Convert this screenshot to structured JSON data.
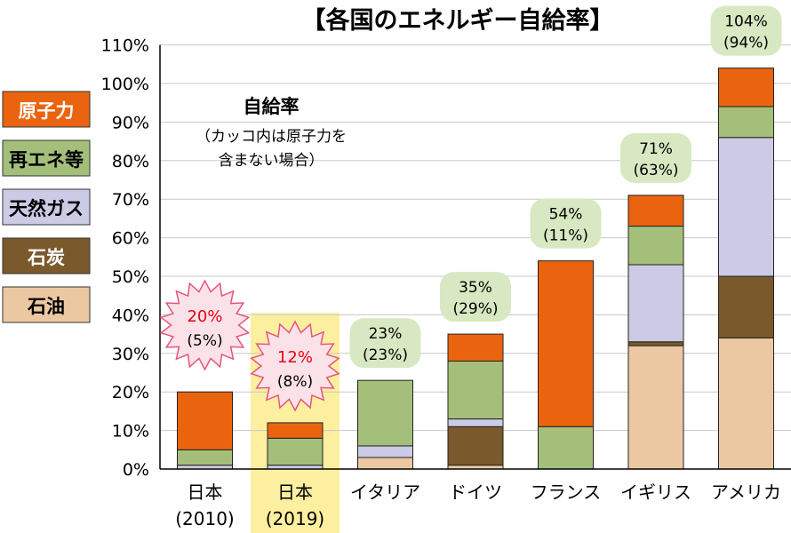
{
  "chart_data": {
    "type": "bar",
    "stacked": true,
    "title": "【各国のエネルギー自給率】",
    "ylim": [
      0,
      110
    ],
    "yticks": [
      "0%",
      "10%",
      "20%",
      "30%",
      "40%",
      "50%",
      "60%",
      "70%",
      "80%",
      "90%",
      "100%",
      "110%"
    ],
    "grid": true,
    "legend_position": "left",
    "note": {
      "line1": "自給率",
      "line2": "（カッコ内は原子力を",
      "line3": "含まない場合）"
    },
    "categories": [
      {
        "label": "日本",
        "sub": "(2010)",
        "highlight": false
      },
      {
        "label": "日本",
        "sub": "(2019)",
        "highlight": true
      },
      {
        "label": "イタリア",
        "sub": "",
        "highlight": false
      },
      {
        "label": "ドイツ",
        "sub": "",
        "highlight": false
      },
      {
        "label": "フランス",
        "sub": "",
        "highlight": false
      },
      {
        "label": "イギリス",
        "sub": "",
        "highlight": false
      },
      {
        "label": "アメリカ",
        "sub": "",
        "highlight": false
      }
    ],
    "series": [
      {
        "name": "石油",
        "color": "#ebc8a2",
        "values": [
          0,
          0,
          3,
          1,
          0,
          32,
          34
        ]
      },
      {
        "name": "石炭",
        "color": "#7a5a2c",
        "values": [
          0,
          0,
          0,
          10,
          0,
          1,
          16
        ]
      },
      {
        "name": "天然ガス",
        "color": "#cccbe6",
        "values": [
          1,
          1,
          3,
          2,
          0,
          20,
          36
        ]
      },
      {
        "name": "再エネ等",
        "color": "#a3bf7a",
        "values": [
          4,
          7,
          17,
          15,
          11,
          10,
          8
        ]
      },
      {
        "name": "原子力",
        "color": "#ea6410",
        "values": [
          15,
          4,
          0,
          7,
          43,
          8,
          10
        ]
      }
    ],
    "data_labels": [
      {
        "total": "20%",
        "excl": "(5%)",
        "style": "burst"
      },
      {
        "total": "12%",
        "excl": "(8%)",
        "style": "burst"
      },
      {
        "total": "23%",
        "excl": "(23%)",
        "style": "bubble"
      },
      {
        "total": "35%",
        "excl": "(29%)",
        "style": "bubble"
      },
      {
        "total": "54%",
        "excl": "(11%)",
        "style": "bubble"
      },
      {
        "total": "71%",
        "excl": "(63%)",
        "style": "bubble"
      },
      {
        "total": "104%",
        "excl": "(94%)",
        "style": "bubble"
      }
    ],
    "legend": [
      {
        "name": "原子力",
        "color": "#ea6410",
        "text_color": "#ffffff"
      },
      {
        "name": "再エネ等",
        "color": "#a3bf7a",
        "text_color": "#000000"
      },
      {
        "name": "天然ガス",
        "color": "#cccbe6",
        "text_color": "#000000"
      },
      {
        "name": "石炭",
        "color": "#7a5a2c",
        "text_color": "#ffffff"
      },
      {
        "name": "石油",
        "color": "#ebc8a2",
        "text_color": "#000000"
      }
    ],
    "burst_total_color": "#e60012",
    "burst_fill": "#fbe2e8",
    "burst_stroke": "#e6557a",
    "bubble_fill": "#d8e8c2",
    "highlight_color": "#fcef9f"
  }
}
